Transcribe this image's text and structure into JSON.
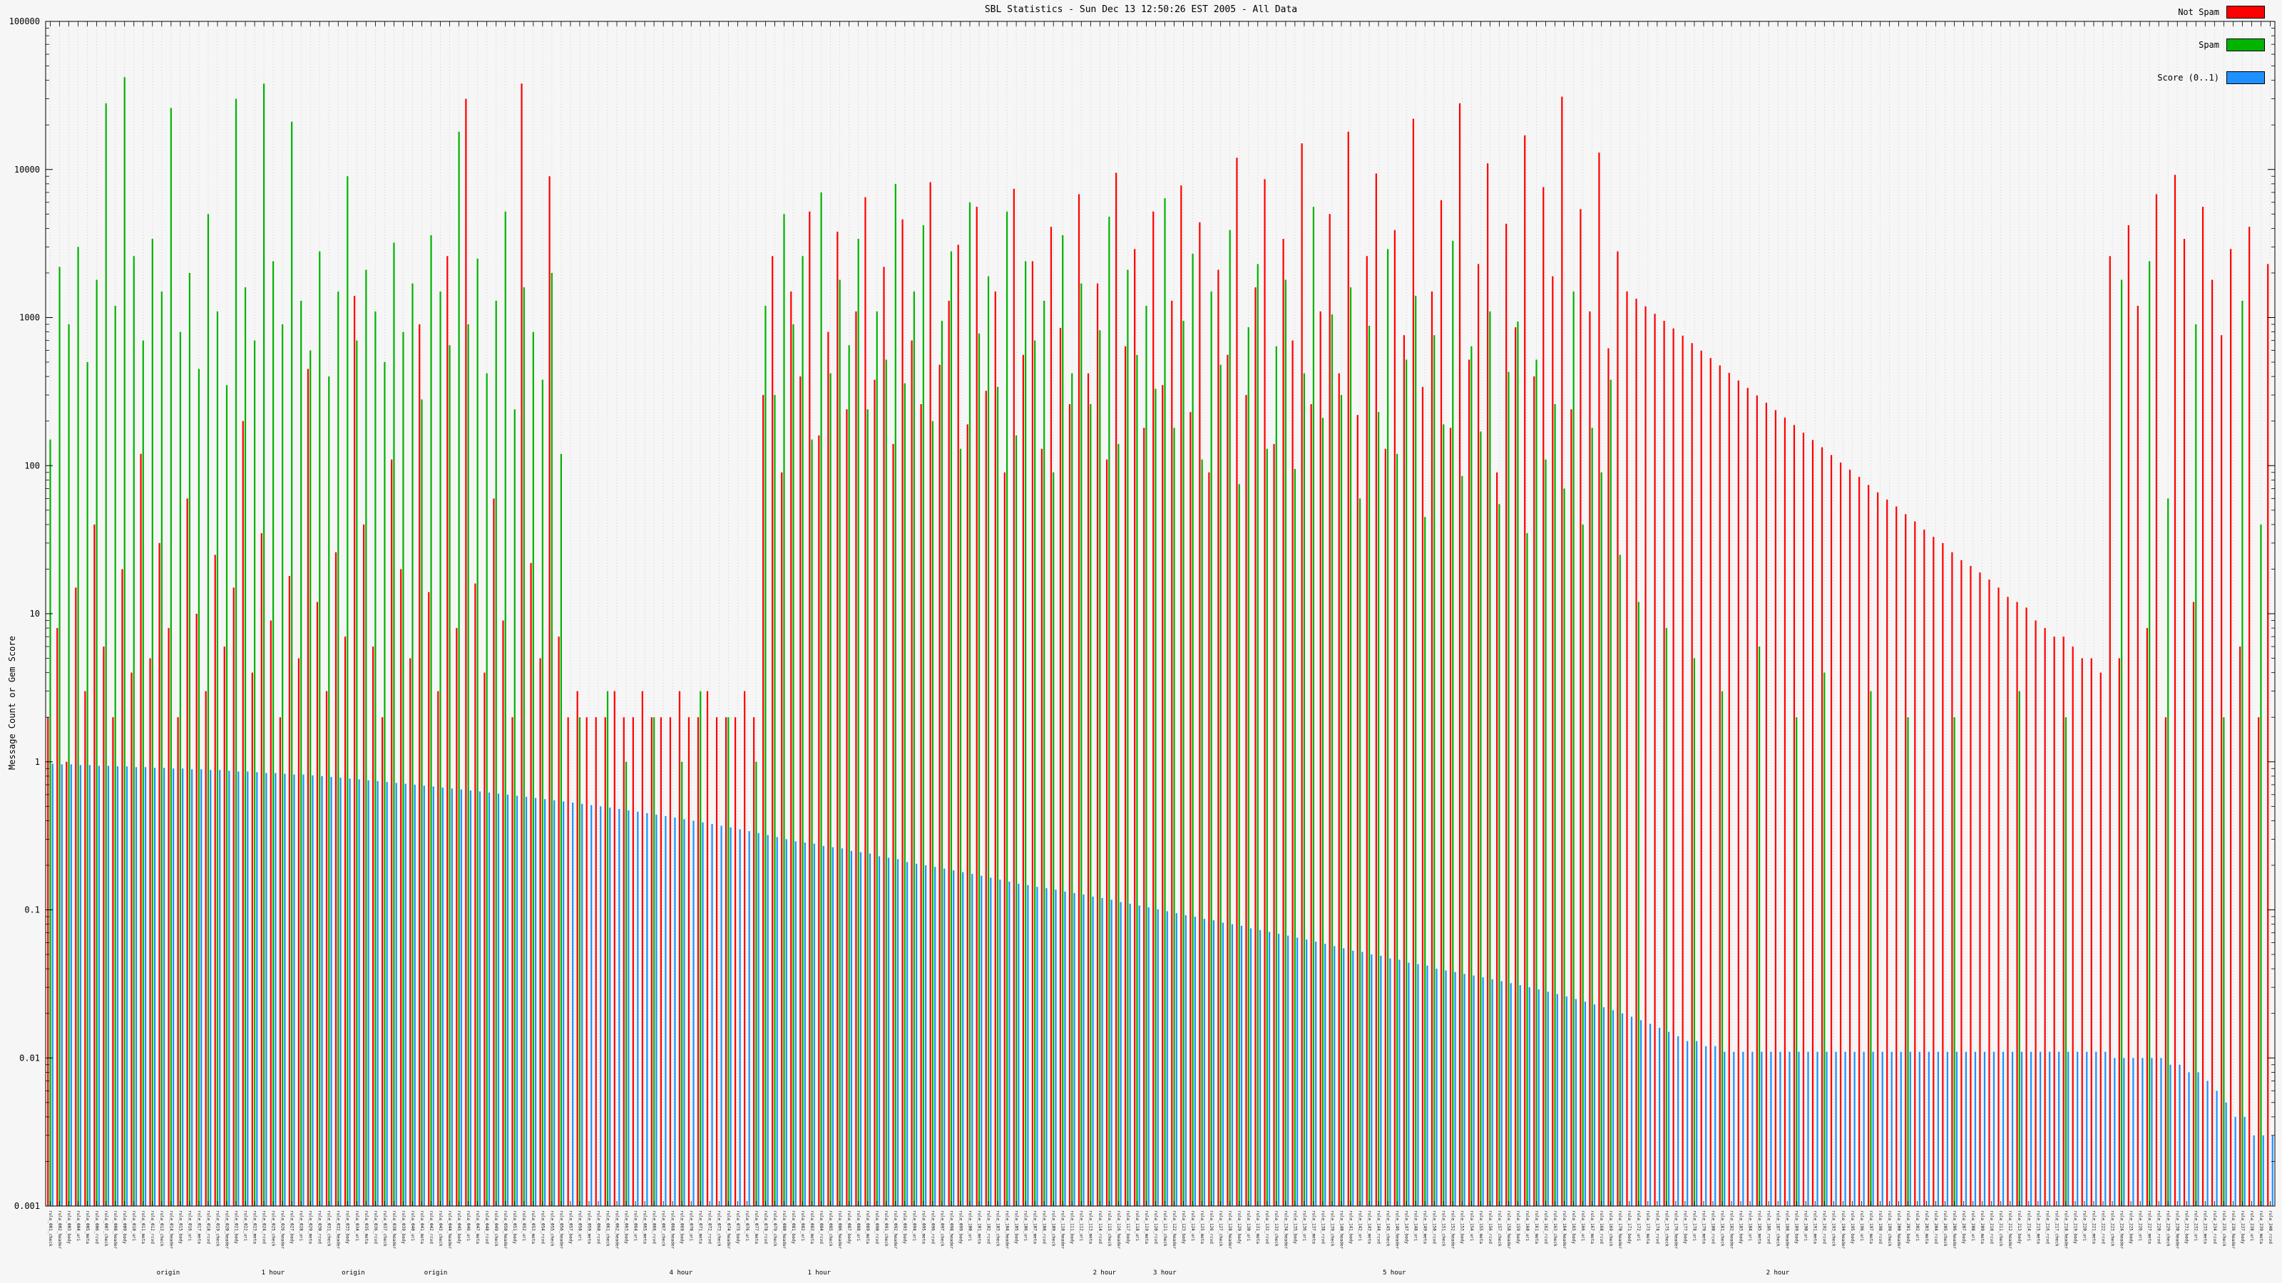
{
  "chart_data": {
    "type": "bar",
    "title": "SBL Statistics - Sun Dec 13 12:50:26 EST 2005 - All Data",
    "ylabel": "Message Count or Gem Score",
    "xlabel": "",
    "y_scale": "log",
    "ylim": [
      0.001,
      100000
    ],
    "y_ticks": [
      "100000",
      "10000",
      "1000",
      "100",
      "10",
      "1",
      "0.1",
      "0.01",
      "0.001"
    ],
    "grid": "vertical-dotted",
    "legend_position": "top-right",
    "legend": [
      {
        "name": "Not Spam",
        "color": "#ff0000"
      },
      {
        "name": "Spam",
        "color": "#00b400"
      },
      {
        "name": "Score (0..1)",
        "color": "#1e90ff"
      }
    ],
    "x_axis": {
      "label_count": 240,
      "labels_readable": false,
      "label_prefix": "rule_",
      "label_suffixes": [
        "check",
        "header",
        "body",
        "uri",
        "meta",
        "rcvd"
      ],
      "fragments": [
        {
          "text": "origin",
          "xf": 0.055
        },
        {
          "text": "1 hour",
          "xf": 0.102
        },
        {
          "text": "origin",
          "xf": 0.138
        },
        {
          "text": "origin",
          "xf": 0.175
        },
        {
          "text": "4 hour",
          "xf": 0.285
        },
        {
          "text": "1 hour",
          "xf": 0.347
        },
        {
          "text": "2 hour",
          "xf": 0.475
        },
        {
          "text": "3 hour",
          "xf": 0.502
        },
        {
          "text": "5 hour",
          "xf": 0.605
        },
        {
          "text": "2 hour",
          "xf": 0.777
        }
      ]
    },
    "series": [
      {
        "name": "Not Spam",
        "color": "#ff0000",
        "values": [
          2,
          8,
          1,
          15,
          3,
          40,
          6,
          2,
          20,
          4,
          120,
          5,
          30,
          8,
          2,
          60,
          10,
          3,
          25,
          6,
          15,
          200,
          4,
          35,
          9,
          2,
          18,
          5,
          450,
          12,
          3,
          26,
          7,
          1400,
          40,
          6,
          2,
          110,
          20,
          5,
          900,
          14,
          3,
          2600,
          8,
          30000,
          16,
          4,
          60,
          9,
          2,
          38000,
          22,
          5,
          9000,
          7,
          2,
          3,
          2,
          2,
          2,
          3,
          2,
          2,
          3,
          2,
          2,
          2,
          3,
          2,
          2,
          3,
          2,
          2,
          2,
          3,
          2,
          300,
          2600,
          90,
          1500,
          400,
          5200,
          160,
          800,
          3800,
          240,
          1100,
          6500,
          380,
          2200,
          140,
          4600,
          700,
          260,
          8200,
          480,
          1300,
          3100,
          190,
          5600,
          320,
          1500,
          90,
          7400,
          560,
          2400,
          130,
          4100,
          850,
          260,
          6800,
          420,
          1700,
          110,
          9500,
          640,
          2900,
          180,
          5200,
          350,
          1300,
          7800,
          230,
          4400,
          90,
          2100,
          560,
          12000,
          300,
          1600,
          8600,
          140,
          3400,
          700,
          15000,
          260,
          1100,
          5000,
          420,
          18000,
          220,
          2600,
          9400,
          130,
          3900,
          760,
          22000,
          340,
          1500,
          6200,
          180,
          28000,
          520,
          2300,
          11000,
          90,
          4300,
          860,
          17000,
          400,
          7600,
          1900,
          31000,
          240,
          5400,
          1100,
          13000,
          620,
          2800,
          1500,
          1340,
          1190,
          1060,
          950,
          845,
          755,
          672,
          598,
          533,
          475,
          423,
          376,
          335,
          298,
          266,
          237,
          211,
          188,
          167,
          149,
          133,
          118,
          105,
          94,
          84,
          74,
          66,
          59,
          53,
          47,
          42,
          37,
          33,
          30,
          26,
          23,
          21,
          19,
          17,
          15,
          13,
          12,
          11,
          9,
          8,
          7,
          7,
          6,
          5,
          5,
          4,
          2600,
          5,
          4200,
          1200,
          8,
          6800,
          2,
          9200,
          3400,
          12,
          5600,
          1800,
          760,
          2900,
          6,
          4100,
          2,
          2300
        ]
      },
      {
        "name": "Spam",
        "color": "#00b400",
        "values": [
          150,
          2200,
          900,
          3000,
          500,
          1800,
          28000,
          1200,
          42000,
          2600,
          700,
          3400,
          1500,
          26000,
          800,
          2000,
          450,
          5000,
          1100,
          350,
          30000,
          1600,
          700,
          38000,
          2400,
          900,
          21000,
          1300,
          600,
          2800,
          400,
          1500,
          9000,
          700,
          2100,
          1100,
          500,
          3200,
          800,
          1700,
          280,
          3600,
          1500,
          650,
          18000,
          900,
          2500,
          420,
          1300,
          5200,
          240,
          1600,
          800,
          380,
          2000,
          120,
          0,
          2,
          0,
          0,
          3,
          0,
          1,
          0,
          0,
          2,
          0,
          0,
          1,
          0,
          3,
          0,
          0,
          2,
          0,
          0,
          1,
          1200,
          300,
          5000,
          900,
          2600,
          150,
          7000,
          420,
          1800,
          650,
          3400,
          240,
          1100,
          520,
          8000,
          360,
          1500,
          4200,
          200,
          950,
          2800,
          130,
          6000,
          780,
          1900,
          340,
          5200,
          160,
          2400,
          700,
          1300,
          90,
          3600,
          420,
          1700,
          260,
          820,
          4800,
          140,
          2100,
          560,
          1200,
          330,
          6400,
          180,
          950,
          2700,
          110,
          1500,
          480,
          3900,
          75,
          860,
          2300,
          130,
          640,
          1800,
          95,
          420,
          5600,
          210,
          1050,
          300,
          1600,
          60,
          880,
          230,
          2900,
          120,
          520,
          1400,
          45,
          760,
          190,
          3300,
          85,
          640,
          170,
          1100,
          55,
          430,
          940,
          35,
          520,
          110,
          260,
          70,
          1500,
          40,
          180,
          90,
          380,
          25,
          0,
          12,
          0,
          0,
          8,
          0,
          0,
          5,
          0,
          0,
          3,
          0,
          0,
          0,
          6,
          0,
          0,
          0,
          2,
          0,
          0,
          4,
          0,
          0,
          0,
          0,
          3,
          0,
          0,
          0,
          2,
          0,
          0,
          0,
          0,
          2,
          0,
          0,
          0,
          0,
          0,
          0,
          3,
          0,
          0,
          0,
          0,
          2,
          0,
          0,
          0,
          0,
          0,
          1800,
          0,
          0,
          2400,
          0,
          60,
          0,
          0,
          900,
          0,
          0,
          2,
          0,
          1300,
          0,
          40,
          0
        ]
      },
      {
        "name": "Score (0..1)",
        "color": "#1e90ff",
        "values": [
          0.97,
          0.96,
          0.96,
          0.95,
          0.95,
          0.94,
          0.94,
          0.93,
          0.93,
          0.92,
          0.92,
          0.91,
          0.91,
          0.9,
          0.9,
          0.89,
          0.89,
          0.88,
          0.88,
          0.87,
          0.86,
          0.86,
          0.85,
          0.84,
          0.84,
          0.83,
          0.82,
          0.82,
          0.81,
          0.8,
          0.79,
          0.78,
          0.77,
          0.76,
          0.75,
          0.74,
          0.73,
          0.72,
          0.71,
          0.7,
          0.69,
          0.68,
          0.67,
          0.66,
          0.65,
          0.64,
          0.63,
          0.62,
          0.61,
          0.6,
          0.59,
          0.58,
          0.57,
          0.56,
          0.55,
          0.54,
          0.53,
          0.52,
          0.51,
          0.5,
          0.49,
          0.48,
          0.47,
          0.46,
          0.45,
          0.44,
          0.43,
          0.42,
          0.41,
          0.4,
          0.39,
          0.38,
          0.37,
          0.36,
          0.35,
          0.34,
          0.33,
          0.32,
          0.31,
          0.3,
          0.29,
          0.285,
          0.28,
          0.27,
          0.265,
          0.26,
          0.25,
          0.245,
          0.24,
          0.23,
          0.225,
          0.22,
          0.21,
          0.205,
          0.2,
          0.195,
          0.19,
          0.185,
          0.18,
          0.175,
          0.17,
          0.165,
          0.16,
          0.155,
          0.15,
          0.147,
          0.143,
          0.14,
          0.137,
          0.133,
          0.13,
          0.127,
          0.123,
          0.12,
          0.117,
          0.113,
          0.11,
          0.107,
          0.104,
          0.101,
          0.098,
          0.095,
          0.092,
          0.09,
          0.087,
          0.085,
          0.082,
          0.08,
          0.078,
          0.075,
          0.073,
          0.071,
          0.069,
          0.067,
          0.065,
          0.063,
          0.061,
          0.059,
          0.057,
          0.055,
          0.053,
          0.052,
          0.05,
          0.049,
          0.047,
          0.046,
          0.044,
          0.043,
          0.042,
          0.04,
          0.039,
          0.038,
          0.037,
          0.036,
          0.035,
          0.034,
          0.033,
          0.032,
          0.031,
          0.03,
          0.029,
          0.028,
          0.027,
          0.026,
          0.025,
          0.024,
          0.023,
          0.022,
          0.021,
          0.02,
          0.019,
          0.018,
          0.017,
          0.016,
          0.015,
          0.014,
          0.013,
          0.013,
          0.012,
          0.012,
          0.011,
          0.011,
          0.011,
          0.011,
          0.011,
          0.011,
          0.011,
          0.011,
          0.011,
          0.011,
          0.011,
          0.011,
          0.011,
          0.011,
          0.011,
          0.011,
          0.011,
          0.011,
          0.011,
          0.011,
          0.011,
          0.011,
          0.011,
          0.011,
          0.011,
          0.011,
          0.011,
          0.011,
          0.011,
          0.011,
          0.011,
          0.011,
          0.011,
          0.011,
          0.011,
          0.011,
          0.011,
          0.011,
          0.011,
          0.011,
          0.011,
          0.011,
          0.01,
          0.01,
          0.01,
          0.01,
          0.01,
          0.01,
          0.009,
          0.009,
          0.008,
          0.008,
          0.007,
          0.006,
          0.005,
          0.004,
          0.004,
          0.003,
          0.003,
          0.003
        ]
      }
    ]
  },
  "colors": {
    "background": "#f6f6f6",
    "grid": "#c4c4c4",
    "axis": "#000000"
  }
}
